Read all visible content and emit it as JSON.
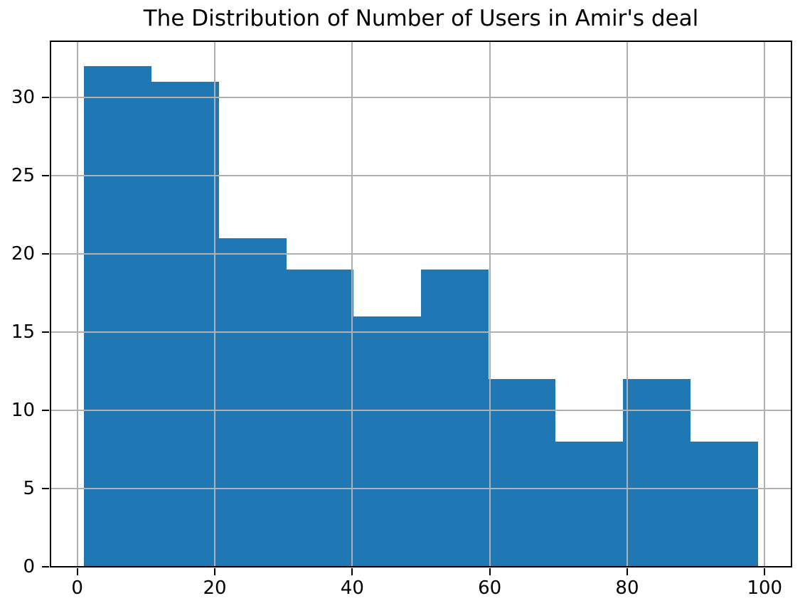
{
  "chart_data": {
    "type": "bar",
    "subtype": "histogram",
    "title": "The Distribution of Number of Users in Amir's deal",
    "xlabel": "",
    "ylabel": "",
    "bin_edges": [
      1,
      10.8,
      20.6,
      30.4,
      40.2,
      50.0,
      59.8,
      69.6,
      79.4,
      89.2,
      99
    ],
    "counts": [
      32,
      31,
      21,
      19,
      16,
      19,
      12,
      8,
      12,
      8
    ],
    "xticks": [
      0,
      20,
      40,
      60,
      80,
      100
    ],
    "yticks": [
      0,
      5,
      10,
      15,
      20,
      25,
      30
    ],
    "xlim": [
      -3.9,
      103.9
    ],
    "ylim": [
      0,
      33.6
    ],
    "grid": true,
    "legend": null,
    "bar_color": "#1f77b4",
    "grid_color": "#b0b0b0",
    "spine_color": "#000000",
    "text_color": "#000000"
  }
}
